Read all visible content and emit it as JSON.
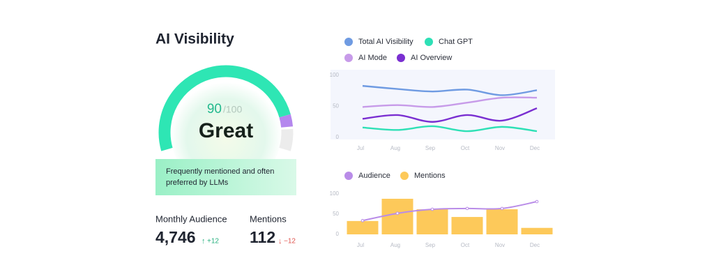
{
  "header": {
    "title": "AI Visibility"
  },
  "gauge": {
    "value": 90,
    "max": 100,
    "max_label": "/100",
    "rating": "Great"
  },
  "note": "Frequently mentioned and often preferred by LLMs",
  "stats": [
    {
      "label": "Monthly Audience",
      "value": "4,746",
      "delta": "+12",
      "direction": "up"
    },
    {
      "label": "Mentions",
      "value": "112",
      "delta": "−12",
      "direction": "down"
    }
  ],
  "chart_data": [
    {
      "type": "line",
      "categories": [
        "Jul",
        "Aug",
        "Sep",
        "Oct",
        "Nov",
        "Dec"
      ],
      "ylim": [
        0,
        100
      ],
      "yticks": [
        0,
        50,
        100
      ],
      "grid": false,
      "series": [
        {
          "name": "Total AI Visibility",
          "color": "#6f9be2",
          "values": [
            83,
            78,
            74,
            77,
            68,
            76
          ]
        },
        {
          "name": "Chat GPT",
          "color": "#2ee0b6",
          "values": [
            16,
            12,
            18,
            10,
            17,
            10
          ]
        },
        {
          "name": "AI Mode",
          "color": "#c79be9",
          "values": [
            49,
            52,
            49,
            56,
            64,
            64
          ]
        },
        {
          "name": "AI Overview",
          "color": "#7a2fd1",
          "values": [
            30,
            36,
            25,
            36,
            27,
            47
          ]
        }
      ]
    },
    {
      "type": "combo",
      "categories": [
        "Jul",
        "Aug",
        "Sep",
        "Oct",
        "Nov",
        "Dec"
      ],
      "ylim": [
        0,
        100
      ],
      "yticks": [
        0,
        50,
        100
      ],
      "grid": false,
      "series": [
        {
          "name": "Audience",
          "type": "line",
          "color": "#b98ce8",
          "values": [
            34,
            52,
            62,
            64,
            64,
            81
          ]
        },
        {
          "name": "Mentions",
          "type": "bar",
          "color": "#fdc95a",
          "values": [
            33,
            88,
            62,
            43,
            62,
            16
          ]
        }
      ]
    }
  ]
}
